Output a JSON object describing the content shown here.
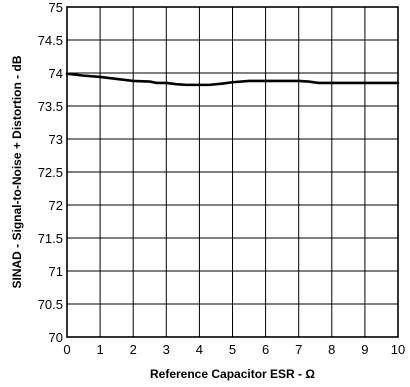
{
  "chart_data": {
    "type": "line",
    "xlabel": "Reference Capacitor ESR - Ω",
    "ylabel": "SINAD - Signal-to-Noise + Distortion - dB",
    "xlim": [
      0,
      10
    ],
    "ylim": [
      70,
      75
    ],
    "x_ticks": [
      0,
      1,
      2,
      3,
      4,
      5,
      6,
      7,
      8,
      9,
      10
    ],
    "y_ticks": [
      70,
      70.5,
      71,
      71.5,
      72,
      72.5,
      73,
      73.5,
      74,
      74.5,
      75
    ],
    "x_tick_labels": [
      "0",
      "1",
      "2",
      "3",
      "4",
      "5",
      "6",
      "7",
      "8",
      "9",
      "10"
    ],
    "y_tick_labels": [
      "70",
      "70.5",
      "71",
      "71.5",
      "72",
      "72.5",
      "73",
      "73.5",
      "74",
      "74.5",
      "75"
    ],
    "grid": true,
    "series": [
      {
        "x": [
          0,
          0.5,
          1,
          1.5,
          2,
          2.5,
          2.7,
          3,
          3.3,
          3.6,
          4,
          4.3,
          4.7,
          5,
          5.5,
          6,
          6.5,
          7,
          7.3,
          7.6,
          8,
          9,
          10
        ],
        "y": [
          73.99,
          73.96,
          73.94,
          73.91,
          73.88,
          73.87,
          73.85,
          73.85,
          73.83,
          73.82,
          73.82,
          73.82,
          73.84,
          73.86,
          73.88,
          73.88,
          73.88,
          73.88,
          73.87,
          73.85,
          73.85,
          73.85,
          73.85
        ]
      }
    ]
  }
}
